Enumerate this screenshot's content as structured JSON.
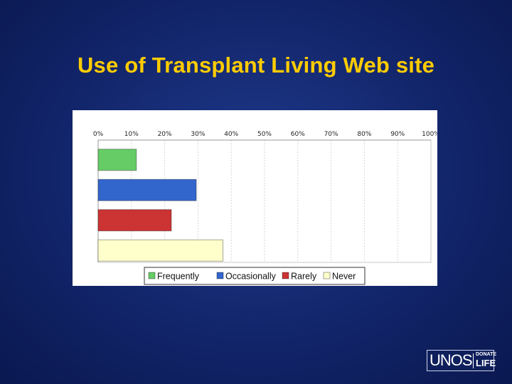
{
  "slide": {
    "title": "Use of Transplant Living Web site"
  },
  "logo": {
    "primary": "UNOS",
    "donate": "DONATE",
    "life": "LIFE"
  },
  "chart_data": {
    "type": "bar",
    "orientation": "horizontal",
    "title": "",
    "xlabel": "",
    "ylabel": "",
    "xlim": [
      0,
      100
    ],
    "x_ticks": [
      "0%",
      "10%",
      "20%",
      "30%",
      "40%",
      "50%",
      "60%",
      "70%",
      "80%",
      "90%",
      "100%"
    ],
    "grid": true,
    "legend_position": "bottom",
    "series": [
      {
        "name": "Frequently",
        "value": 11.5,
        "color": "#66cc66"
      },
      {
        "name": "Occasionally",
        "value": 29.5,
        "color": "#3366cc"
      },
      {
        "name": "Rarely",
        "value": 22,
        "color": "#cc3333"
      },
      {
        "name": "Never",
        "value": 37.5,
        "color": "#ffffcc"
      }
    ]
  }
}
